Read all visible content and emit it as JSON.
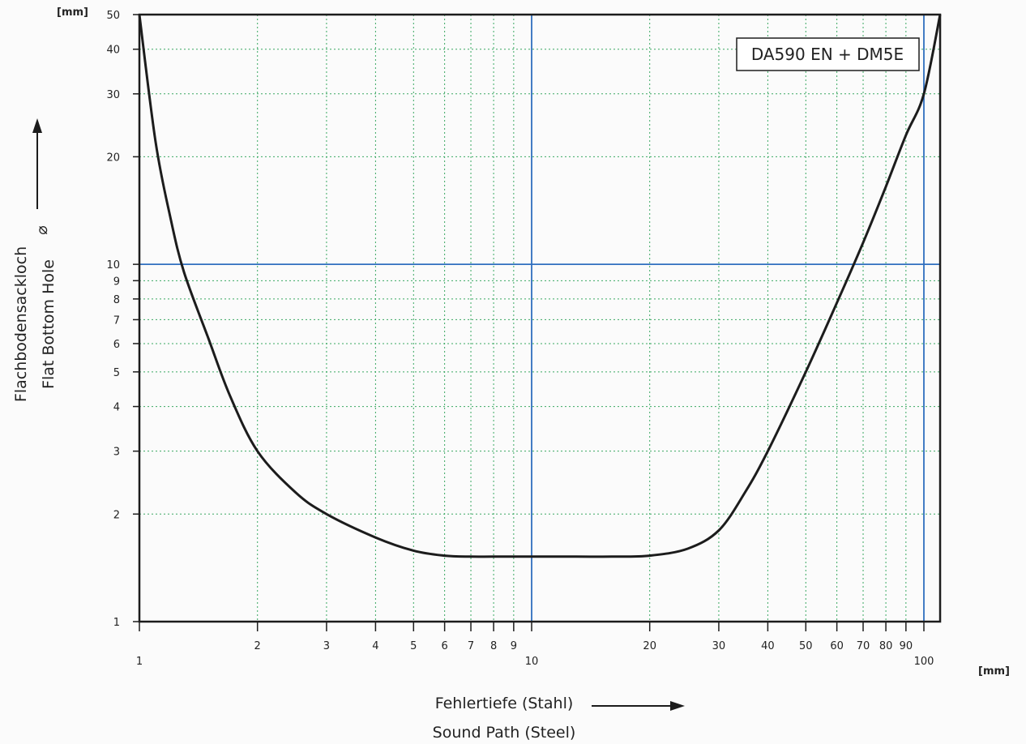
{
  "chart_data": {
    "type": "line",
    "x_scale": "log",
    "y_scale": "log",
    "xlim": [
      1,
      110
    ],
    "ylim": [
      1,
      50
    ],
    "x_unit": "[mm]",
    "y_unit": "[mm]",
    "x_ticks": [
      {
        "value": 1,
        "label": "1",
        "row": "lower"
      },
      {
        "value": 2,
        "label": "2",
        "row": "upper"
      },
      {
        "value": 3,
        "label": "3",
        "row": "upper"
      },
      {
        "value": 4,
        "label": "4",
        "row": "upper"
      },
      {
        "value": 5,
        "label": "5",
        "row": "upper"
      },
      {
        "value": 6,
        "label": "6",
        "row": "upper"
      },
      {
        "value": 7,
        "label": "7",
        "row": "upper"
      },
      {
        "value": 8,
        "label": "8",
        "row": "upper"
      },
      {
        "value": 9,
        "label": "9",
        "row": "upper"
      },
      {
        "value": 10,
        "label": "10",
        "row": "lower"
      },
      {
        "value": 20,
        "label": "20",
        "row": "upper"
      },
      {
        "value": 30,
        "label": "30",
        "row": "upper"
      },
      {
        "value": 40,
        "label": "40",
        "row": "upper"
      },
      {
        "value": 50,
        "label": "50",
        "row": "upper"
      },
      {
        "value": 60,
        "label": "60",
        "row": "upper"
      },
      {
        "value": 70,
        "label": "70",
        "row": "upper"
      },
      {
        "value": 80,
        "label": "80",
        "row": "upper"
      },
      {
        "value": 90,
        "label": "90",
        "row": "upper"
      },
      {
        "value": 100,
        "label": "100",
        "row": "lower"
      }
    ],
    "y_ticks": [
      {
        "value": 1,
        "label": "1"
      },
      {
        "value": 2,
        "label": "2"
      },
      {
        "value": 3,
        "label": "3"
      },
      {
        "value": 4,
        "label": "4"
      },
      {
        "value": 5,
        "label": "5"
      },
      {
        "value": 6,
        "label": "6"
      },
      {
        "value": 7,
        "label": "7"
      },
      {
        "value": 8,
        "label": "8"
      },
      {
        "value": 9,
        "label": "9"
      },
      {
        "value": 10,
        "label": "10"
      },
      {
        "value": 20,
        "label": "20"
      },
      {
        "value": 30,
        "label": "30"
      },
      {
        "value": 40,
        "label": "40"
      },
      {
        "value": 50,
        "label": "50"
      }
    ],
    "major_lines_x": [
      10,
      100
    ],
    "major_lines_y": [
      10
    ],
    "xlabel_de": "Fehlertiefe (Stahl)",
    "xlabel_en": "Sound Path (Steel)",
    "ylabel_de": "Flachbodensackloch",
    "ylabel_en": "Flat Bottom Hole",
    "ylabel_symbol": "⌀",
    "legend": "DA590 EN + DM5E",
    "grid": true,
    "series": [
      {
        "x": [
          1.0,
          1.1,
          1.2,
          1.3,
          1.5,
          1.7,
          2.0,
          2.5,
          3.0,
          4.0,
          5.0,
          6.0,
          7.0,
          8.0,
          10,
          13,
          16,
          20,
          25,
          30,
          35,
          40,
          50,
          60,
          70,
          80,
          90,
          100,
          110
        ],
        "y": [
          50,
          22,
          13.5,
          9.5,
          6.2,
          4.3,
          3.0,
          2.3,
          2.0,
          1.72,
          1.58,
          1.53,
          1.52,
          1.52,
          1.52,
          1.52,
          1.52,
          1.53,
          1.6,
          1.8,
          2.3,
          3.0,
          5.0,
          7.8,
          11.5,
          16.5,
          23,
          30,
          50
        ]
      }
    ],
    "colors": {
      "curve": "#1c1c1c",
      "frame": "#1c1c1c",
      "major_grid": "#2f6fbf",
      "minor_grid": "#3aa862"
    }
  }
}
